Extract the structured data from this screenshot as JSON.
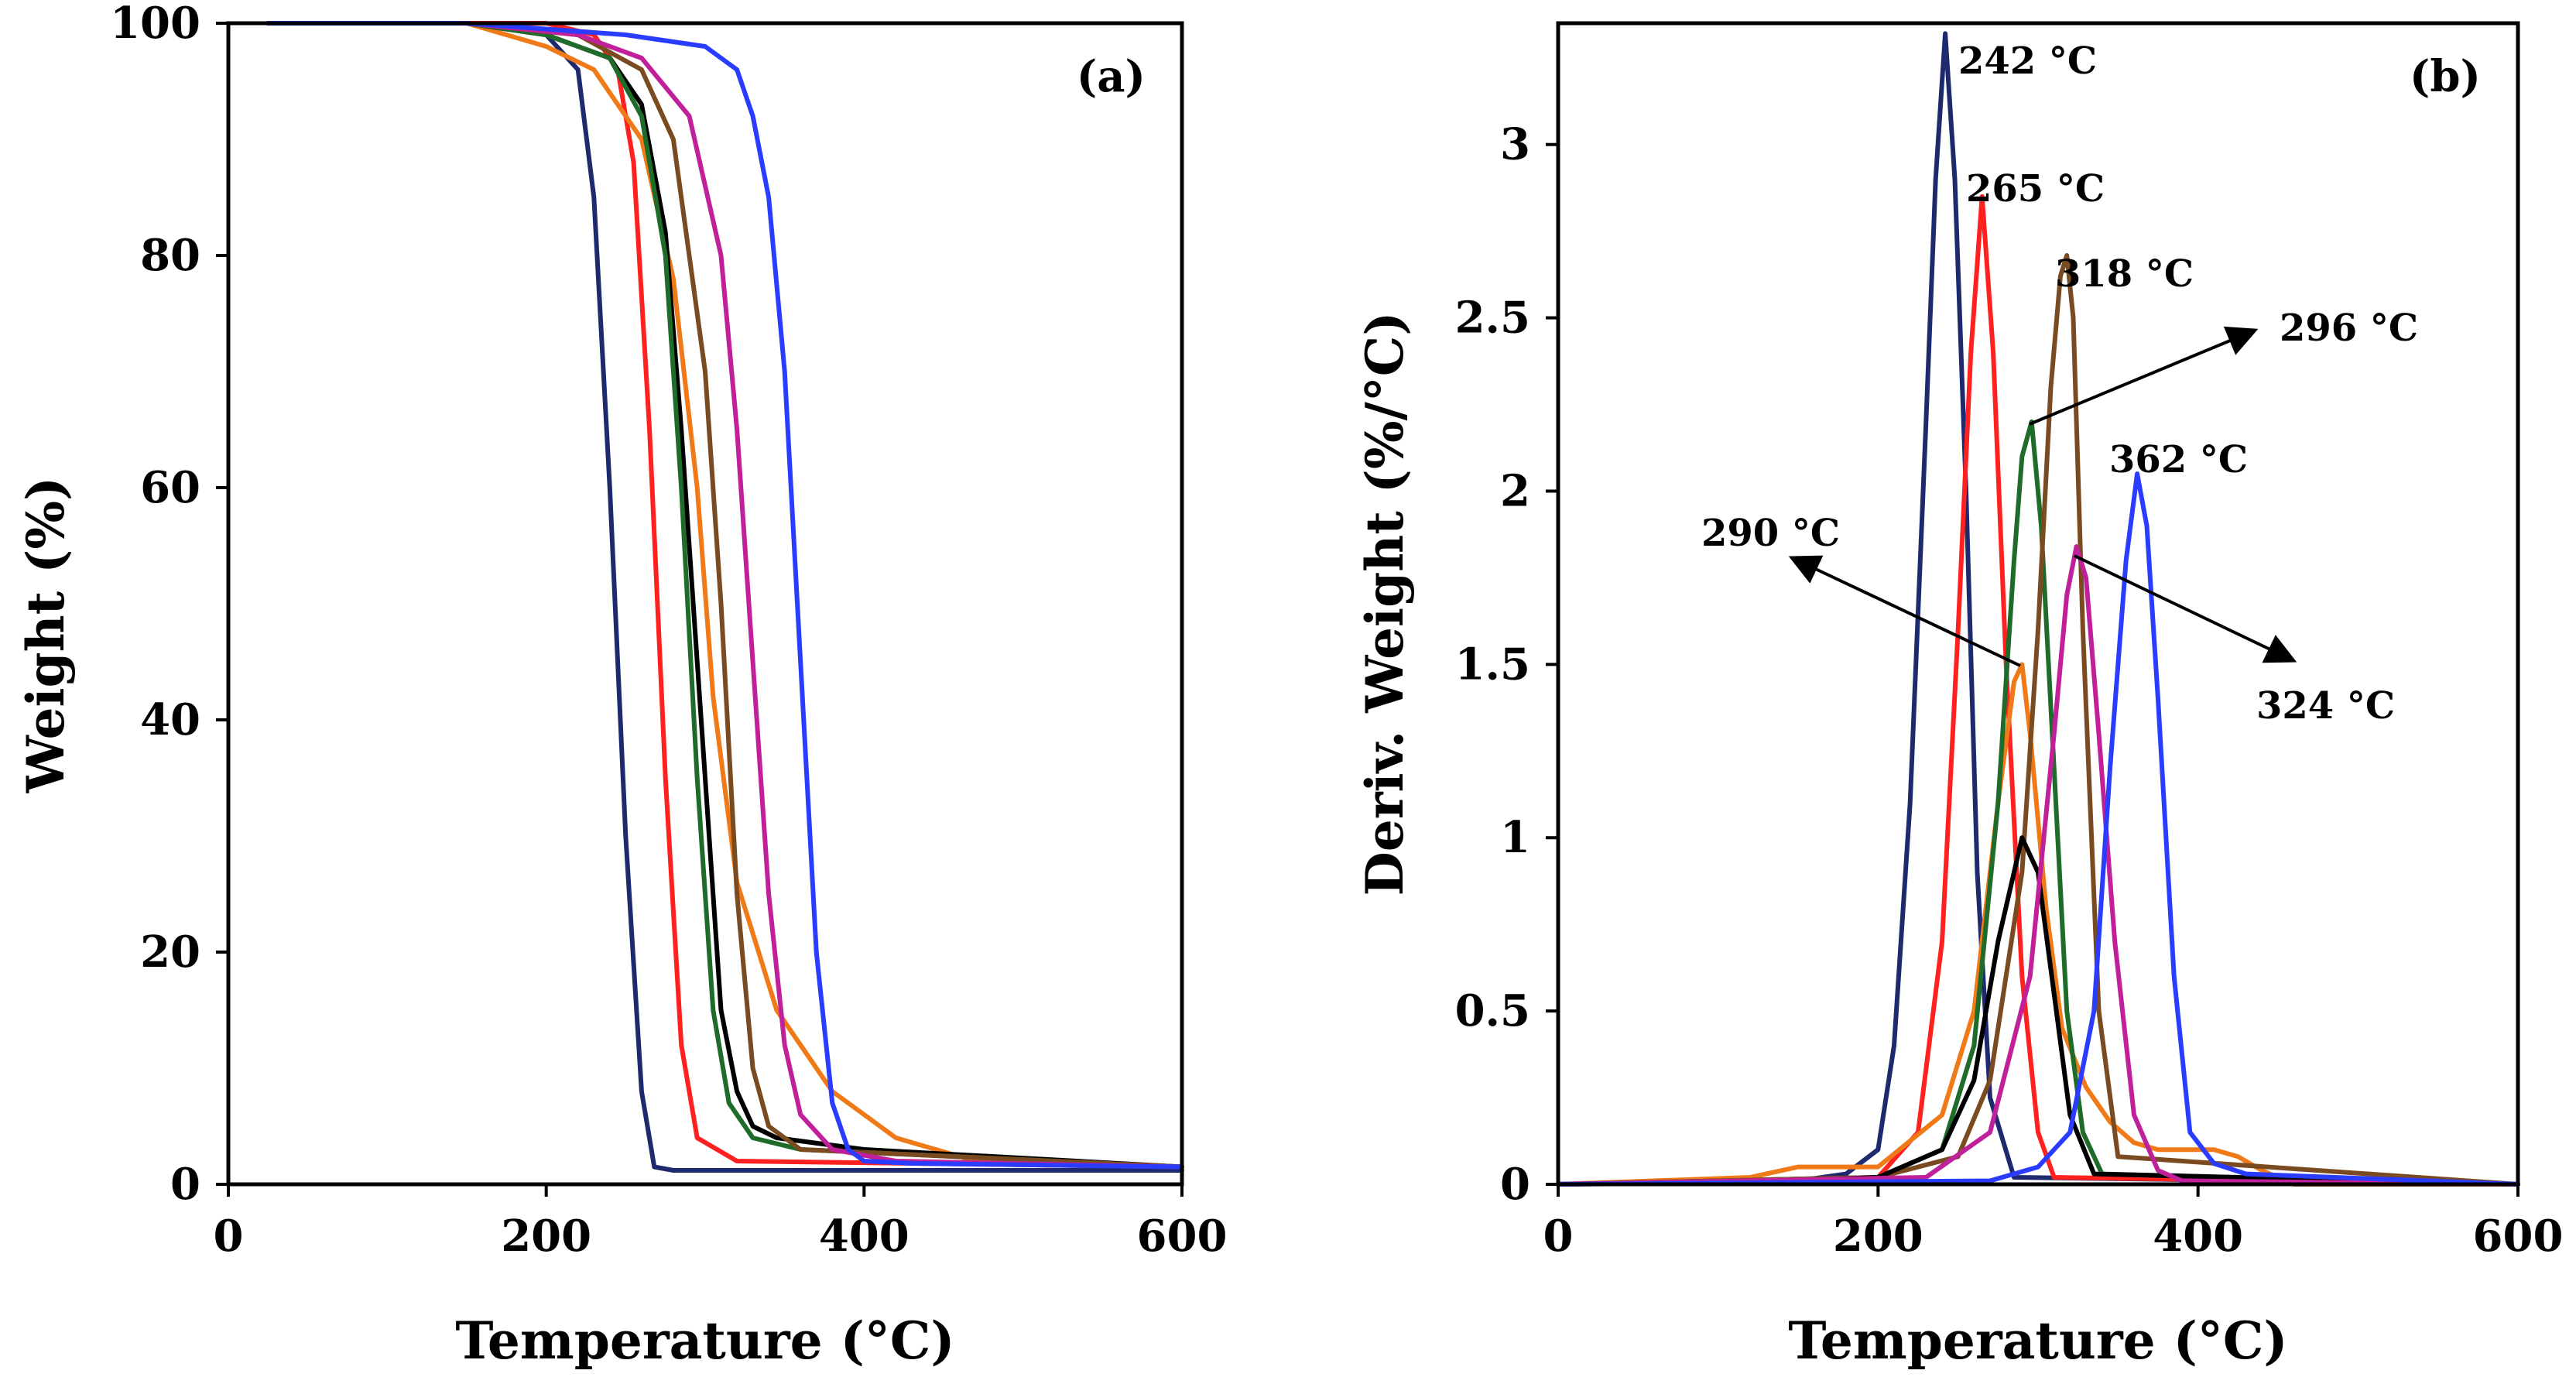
{
  "colors": {
    "navy": "#1f2a6e",
    "red": "#ff2020",
    "orange": "#f07a18",
    "green": "#1e6b2a",
    "brown": "#7a4a20",
    "magenta": "#c0209a",
    "blue": "#2a3cff",
    "black": "#000000"
  },
  "chart_data": [
    {
      "type": "line",
      "panel_label": "(a)",
      "title": "",
      "xlabel": "Temperature (°C)",
      "ylabel": "Weight (%)",
      "xlim": [
        0,
        600
      ],
      "ylim": [
        0,
        100
      ],
      "x_ticks": [
        0,
        200,
        400,
        600
      ],
      "y_ticks": [
        0,
        20,
        40,
        60,
        80,
        100
      ],
      "grid": false,
      "legend": "none",
      "series": [
        {
          "name": "navy",
          "color_key": "navy",
          "x": [
            25,
            150,
            200,
            220,
            230,
            240,
            250,
            260,
            268,
            280,
            600
          ],
          "y": [
            100,
            100,
            99,
            96,
            85,
            60,
            30,
            8,
            1.5,
            1.2,
            1.2
          ]
        },
        {
          "name": "red",
          "color_key": "red",
          "x": [
            25,
            200,
            230,
            245,
            255,
            265,
            275,
            285,
            295,
            320,
            600
          ],
          "y": [
            100,
            100,
            99,
            96,
            88,
            65,
            35,
            12,
            4,
            2,
            1.5
          ]
        },
        {
          "name": "orange",
          "color_key": "orange",
          "x": [
            25,
            150,
            200,
            230,
            260,
            280,
            295,
            305,
            320,
            345,
            360,
            380,
            420,
            470,
            600
          ],
          "y": [
            100,
            100,
            98,
            96,
            90,
            78,
            60,
            42,
            26,
            15,
            12,
            8,
            4,
            2,
            1.5
          ]
        },
        {
          "name": "black",
          "color_key": "black",
          "x": [
            25,
            150,
            200,
            240,
            260,
            275,
            285,
            300,
            310,
            320,
            330,
            345,
            400,
            600
          ],
          "y": [
            100,
            100,
            99,
            97,
            93,
            82,
            65,
            35,
            15,
            8,
            5,
            4,
            3,
            1.5
          ]
        },
        {
          "name": "green",
          "color_key": "green",
          "x": [
            25,
            150,
            200,
            240,
            260,
            275,
            285,
            295,
            305,
            315,
            330,
            360,
            600
          ],
          "y": [
            100,
            100,
            99,
            97,
            92,
            80,
            60,
            35,
            15,
            7,
            4,
            3,
            1.5
          ]
        },
        {
          "name": "brown",
          "color_key": "brown",
          "x": [
            25,
            150,
            220,
            260,
            280,
            300,
            310,
            320,
            330,
            340,
            360,
            600
          ],
          "y": [
            100,
            100,
            99,
            96,
            90,
            70,
            50,
            25,
            10,
            5,
            3,
            1.5
          ]
        },
        {
          "name": "magenta",
          "color_key": "magenta",
          "x": [
            25,
            150,
            220,
            260,
            290,
            310,
            320,
            330,
            340,
            350,
            360,
            380,
            420,
            600
          ],
          "y": [
            100,
            100,
            99,
            97,
            92,
            80,
            65,
            45,
            25,
            12,
            6,
            3,
            2,
            1.5
          ]
        },
        {
          "name": "blue",
          "color_key": "blue",
          "x": [
            25,
            150,
            250,
            300,
            320,
            330,
            340,
            350,
            360,
            370,
            380,
            390,
            400,
            430,
            600
          ],
          "y": [
            100,
            100,
            99,
            98,
            96,
            92,
            85,
            70,
            45,
            20,
            7,
            3,
            2,
            1.8,
            1.5
          ]
        }
      ]
    },
    {
      "type": "line",
      "panel_label": "(b)",
      "title": "",
      "xlabel": "Temperature (°C)",
      "ylabel": "Deriv. Weight (%/°C)",
      "xlim": [
        0,
        600
      ],
      "ylim": [
        0,
        3.35
      ],
      "x_ticks": [
        0,
        200,
        400,
        600
      ],
      "y_ticks": [
        0,
        0.5,
        1,
        1.5,
        2,
        2.5,
        3
      ],
      "grid": false,
      "legend": "none",
      "series": [
        {
          "name": "navy",
          "color_key": "navy",
          "x": [
            0,
            150,
            180,
            200,
            210,
            220,
            230,
            236,
            242,
            248,
            255,
            262,
            270,
            285,
            600
          ],
          "y": [
            0,
            0.01,
            0.03,
            0.1,
            0.4,
            1.1,
            2.2,
            2.9,
            3.32,
            2.9,
            2.0,
            0.9,
            0.25,
            0.02,
            0
          ]
        },
        {
          "name": "red",
          "color_key": "red",
          "x": [
            0,
            200,
            225,
            240,
            250,
            258,
            265,
            272,
            280,
            290,
            300,
            310,
            600
          ],
          "y": [
            0,
            0.02,
            0.15,
            0.7,
            1.6,
            2.4,
            2.85,
            2.4,
            1.5,
            0.6,
            0.15,
            0.02,
            0
          ]
        },
        {
          "name": "orange",
          "color_key": "orange",
          "x": [
            0,
            120,
            150,
            170,
            200,
            240,
            260,
            275,
            285,
            290,
            295,
            305,
            315,
            330,
            345,
            360,
            375,
            390,
            410,
            425,
            440,
            460,
            600
          ],
          "y": [
            0,
            0.02,
            0.05,
            0.05,
            0.05,
            0.2,
            0.5,
            1.1,
            1.45,
            1.5,
            1.3,
            0.8,
            0.45,
            0.28,
            0.18,
            0.12,
            0.1,
            0.1,
            0.1,
            0.08,
            0.04,
            0,
            0
          ]
        },
        {
          "name": "green",
          "color_key": "green",
          "x": [
            0,
            200,
            240,
            260,
            275,
            285,
            290,
            296,
            302,
            310,
            318,
            328,
            340,
            600
          ],
          "y": [
            0,
            0.02,
            0.1,
            0.4,
            1.1,
            1.8,
            2.1,
            2.2,
            1.9,
            1.2,
            0.5,
            0.15,
            0.03,
            0
          ]
        },
        {
          "name": "brown",
          "color_key": "brown",
          "x": [
            0,
            200,
            250,
            270,
            290,
            300,
            308,
            314,
            318,
            322,
            328,
            338,
            350,
            600
          ],
          "y": [
            0,
            0.02,
            0.08,
            0.3,
            0.9,
            1.6,
            2.3,
            2.62,
            2.68,
            2.5,
            1.6,
            0.5,
            0.08,
            0
          ]
        },
        {
          "name": "black",
          "color_key": "black",
          "x": [
            0,
            150,
            200,
            240,
            260,
            275,
            290,
            300,
            310,
            320,
            335,
            600
          ],
          "y": [
            0,
            0.01,
            0.02,
            0.1,
            0.3,
            0.7,
            1.0,
            0.9,
            0.55,
            0.2,
            0.03,
            0
          ]
        },
        {
          "name": "magenta",
          "color_key": "magenta",
          "x": [
            0,
            230,
            270,
            295,
            310,
            318,
            324,
            330,
            338,
            348,
            360,
            375,
            390,
            600
          ],
          "y": [
            0,
            0.02,
            0.15,
            0.6,
            1.3,
            1.7,
            1.84,
            1.75,
            1.3,
            0.7,
            0.2,
            0.04,
            0.01,
            0
          ]
        },
        {
          "name": "blue",
          "color_key": "blue",
          "x": [
            0,
            270,
            300,
            320,
            335,
            345,
            355,
            362,
            368,
            375,
            385,
            395,
            410,
            430,
            600
          ],
          "y": [
            0,
            0.01,
            0.05,
            0.15,
            0.5,
            1.2,
            1.8,
            2.05,
            1.9,
            1.4,
            0.6,
            0.15,
            0.06,
            0.03,
            0
          ]
        }
      ],
      "annotations": [
        {
          "text": "242 °C"
        },
        {
          "text": "265 °C"
        },
        {
          "text": "318 °C"
        },
        {
          "text": "296 °C"
        },
        {
          "text": "362 °C"
        },
        {
          "text": "290 °C"
        },
        {
          "text": "324 °C"
        }
      ]
    }
  ]
}
